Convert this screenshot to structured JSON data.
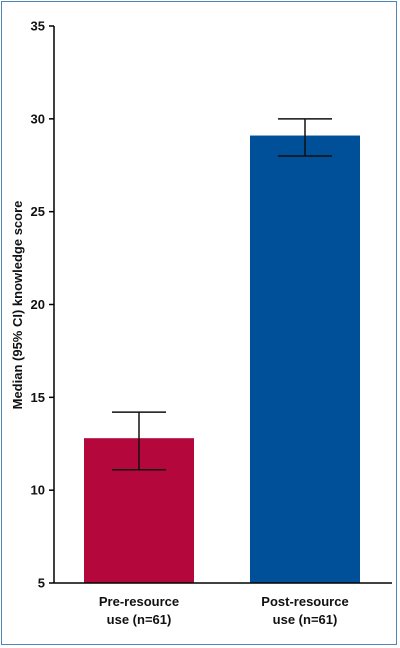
{
  "chart_data": {
    "type": "bar",
    "title": "",
    "xlabel": "",
    "ylabel": "Median (95% CI) knowledge score",
    "ylim": [
      5,
      35
    ],
    "yticks": [
      5,
      10,
      15,
      20,
      25,
      30,
      35
    ],
    "grid": false,
    "categories": [
      [
        "Pre-resource",
        "use (n=61)"
      ],
      [
        "Post-resource",
        "use (n=61)"
      ]
    ],
    "values": [
      12.8,
      29.1
    ],
    "ci_lower": [
      11.1,
      28.0
    ],
    "ci_upper": [
      14.2,
      30.0
    ],
    "colors": [
      "#b4083d",
      "#004f99"
    ]
  }
}
